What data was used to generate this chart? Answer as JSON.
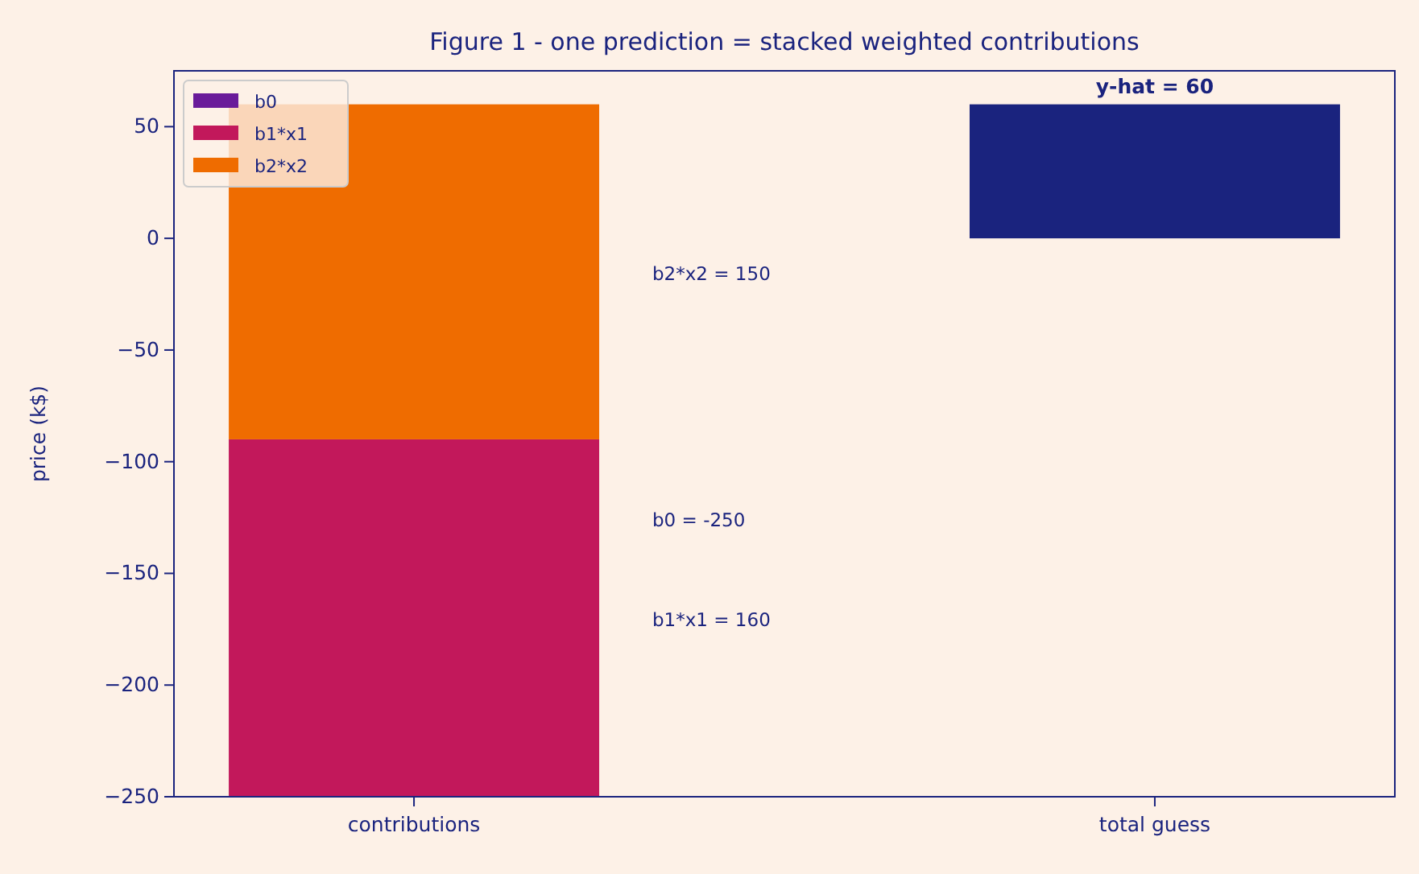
{
  "chart_data": {
    "type": "bar",
    "title": "Figure 1 - one prediction = stacked weighted contributions",
    "ylabel": "price (k$)",
    "categories": [
      "contributions",
      "total guess"
    ],
    "series": [
      {
        "name": "b0",
        "color": "#6a1b9a",
        "values": [
          null,
          null
        ]
      },
      {
        "name": "b1*x1",
        "color": "#c2185b",
        "values": [
          160,
          null
        ],
        "base": [
          -250,
          null
        ]
      },
      {
        "name": "b2*x2",
        "color": "#ef6c00",
        "values": [
          150,
          null
        ],
        "base": [
          -90,
          null
        ]
      },
      {
        "color": "#1a237e",
        "values": [
          null,
          60
        ]
      }
    ],
    "ylim": [
      -250,
      75
    ],
    "yticks": [
      {
        "value": -250,
        "label": "−250"
      },
      {
        "value": -200,
        "label": "−200"
      },
      {
        "value": -150,
        "label": "−150"
      },
      {
        "value": -100,
        "label": "−100"
      },
      {
        "value": -50,
        "label": "−50"
      },
      0,
      50
    ],
    "annotations": [
      "b2*x2 = 150",
      "b0 = -250",
      "b1*x1 = 160",
      {
        "text": "y-hat = 60",
        "x": "total guess",
        "y": 60
      }
    ],
    "legend": "top left",
    "grid": false
  }
}
